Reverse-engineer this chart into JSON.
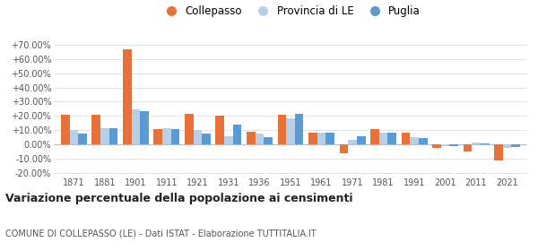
{
  "years": [
    1871,
    1881,
    1901,
    1911,
    1921,
    1931,
    1936,
    1951,
    1961,
    1971,
    1981,
    1991,
    2001,
    2011,
    2021
  ],
  "collepasso": [
    21.0,
    21.0,
    67.0,
    11.0,
    21.5,
    20.0,
    9.0,
    21.0,
    8.0,
    -6.5,
    10.5,
    8.5,
    -2.5,
    -5.0,
    -11.5
  ],
  "provincia_le": [
    10.0,
    11.5,
    24.5,
    11.5,
    10.0,
    5.5,
    7.5,
    18.0,
    8.0,
    3.5,
    8.5,
    5.0,
    -1.5,
    1.5,
    -2.5
  ],
  "puglia": [
    7.5,
    11.5,
    23.5,
    10.5,
    7.5,
    14.0,
    5.0,
    21.5,
    8.0,
    5.5,
    8.0,
    4.5,
    -1.5,
    0.5,
    -2.0
  ],
  "color_collepasso": "#e8703a",
  "color_provincia": "#b8cfe8",
  "color_puglia": "#5b9bd5",
  "title": "Variazione percentuale della popolazione ai censimenti",
  "subtitle": "COMUNE DI COLLEPASSO (LE) - Dati ISTAT - Elaborazione TUTTITALIA.IT",
  "ylim": [
    -22,
    75
  ],
  "yticks": [
    -20,
    -10,
    0,
    10,
    20,
    30,
    40,
    50,
    60,
    70
  ],
  "background": "#ffffff",
  "grid_color": "#dddddd",
  "legend_labels": [
    "Collepasso",
    "Provincia di LE",
    "Puglia"
  ],
  "bar_width": 0.28
}
